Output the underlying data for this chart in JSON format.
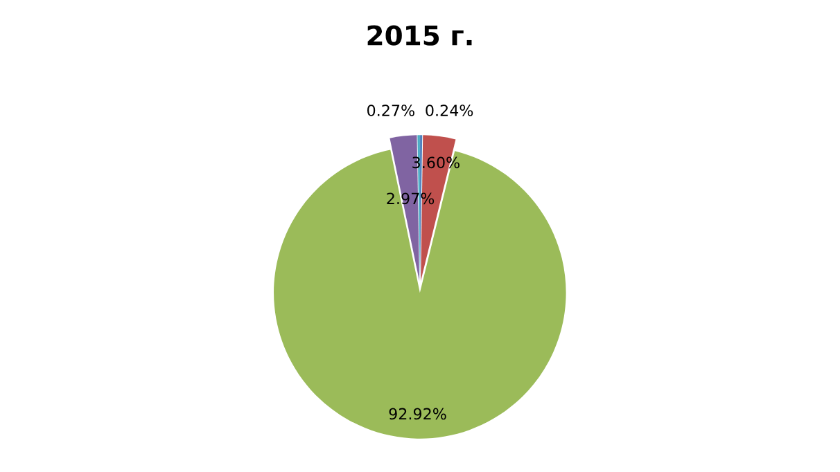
{
  "chart_data": {
    "type": "pie",
    "title": "2015 г.",
    "categories": [
      null,
      null,
      null,
      null,
      null
    ],
    "values": [
      0.24,
      3.6,
      92.92,
      2.97,
      0.27
    ],
    "colors": [
      "#4f81bd",
      "#c0504d",
      "#9bbb59",
      "#8064a2",
      "#4bacc6"
    ],
    "value_labels": [
      "0.24%",
      "3.60%",
      "92.92%",
      "2.97%",
      "0.27%"
    ],
    "legend": false
  }
}
